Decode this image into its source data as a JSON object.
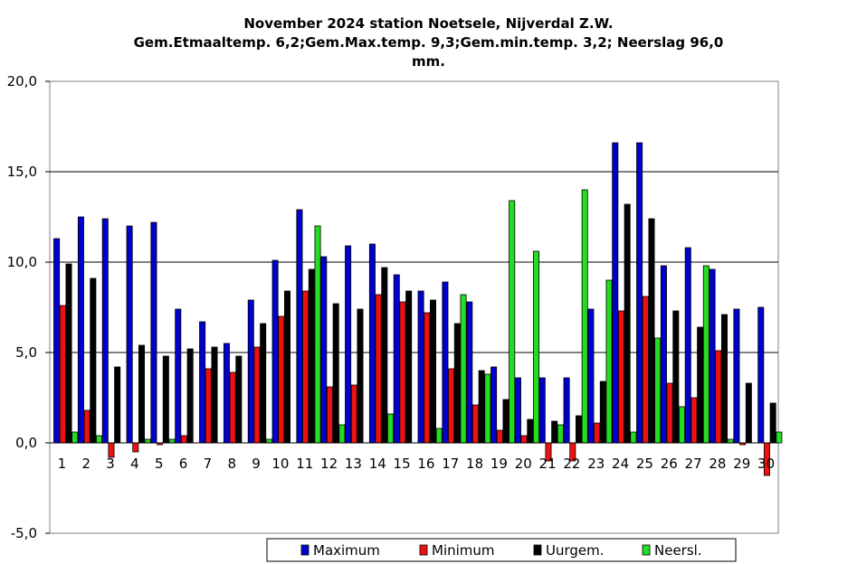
{
  "chart_data": {
    "type": "bar",
    "title_lines": [
      "November 2024 station Noetsele, Nijverdal Z.W.",
      "Gem.Etmaaltemp. 6,2;Gem.Max.temp. 9,3;Gem.min.temp. 3,2; Neerslag 96,0",
      "mm."
    ],
    "categories": [
      "1",
      "2",
      "3",
      "4",
      "5",
      "6",
      "7",
      "8",
      "9",
      "10",
      "11",
      "12",
      "13",
      "14",
      "15",
      "16",
      "17",
      "18",
      "19",
      "20",
      "21",
      "22",
      "23",
      "24",
      "25",
      "26",
      "27",
      "28",
      "29",
      "30"
    ],
    "ylim": [
      -5,
      20
    ],
    "yticks": [
      {
        "value": 20,
        "label": "20,0"
      },
      {
        "value": 15,
        "label": "15,0"
      },
      {
        "value": 10,
        "label": "10,0"
      },
      {
        "value": 5,
        "label": "5,0"
      },
      {
        "value": 0,
        "label": "0,0"
      },
      {
        "value": -5,
        "label": "-5,0"
      }
    ],
    "grid": true,
    "legend_position": "bottom",
    "series": [
      {
        "name": "Maximum",
        "color": "#0000cc",
        "values": [
          11.3,
          12.5,
          12.4,
          12.0,
          12.2,
          7.4,
          6.7,
          5.5,
          7.9,
          10.1,
          12.9,
          10.3,
          10.9,
          11.0,
          9.3,
          8.4,
          8.9,
          7.8,
          4.2,
          3.6,
          3.6,
          3.6,
          7.4,
          16.6,
          16.6,
          9.8,
          10.8,
          9.6,
          7.4,
          7.5
        ]
      },
      {
        "name": "Minimum",
        "color": "#ee1111",
        "values": [
          7.6,
          1.8,
          -0.8,
          -0.5,
          -0.1,
          0.4,
          4.1,
          3.9,
          5.3,
          7.0,
          8.4,
          3.1,
          3.2,
          8.2,
          7.8,
          7.2,
          4.1,
          2.1,
          0.7,
          0.4,
          -1.0,
          -1.0,
          1.1,
          7.3,
          8.1,
          3.3,
          2.5,
          5.1,
          -0.1,
          -1.8
        ]
      },
      {
        "name": "Uurgem.",
        "color": "#000000",
        "values": [
          9.9,
          9.1,
          4.2,
          5.4,
          4.8,
          5.2,
          5.3,
          4.8,
          6.6,
          8.4,
          9.6,
          7.7,
          7.4,
          9.7,
          8.4,
          7.9,
          6.6,
          4.0,
          2.4,
          1.3,
          1.2,
          1.5,
          3.4,
          13.2,
          12.4,
          7.3,
          6.4,
          7.1,
          3.3,
          2.2
        ]
      },
      {
        "name": "Neersl.",
        "color": "#22dd22",
        "values": [
          0.6,
          0.4,
          0.0,
          0.2,
          0.2,
          0.0,
          0.0,
          0.0,
          0.2,
          0.0,
          12.0,
          1.0,
          0.0,
          1.6,
          0.0,
          0.8,
          8.2,
          3.8,
          13.4,
          10.6,
          1.0,
          14.0,
          9.0,
          0.6,
          5.8,
          2.0,
          9.8,
          0.2,
          0.0,
          0.6
        ]
      }
    ]
  }
}
